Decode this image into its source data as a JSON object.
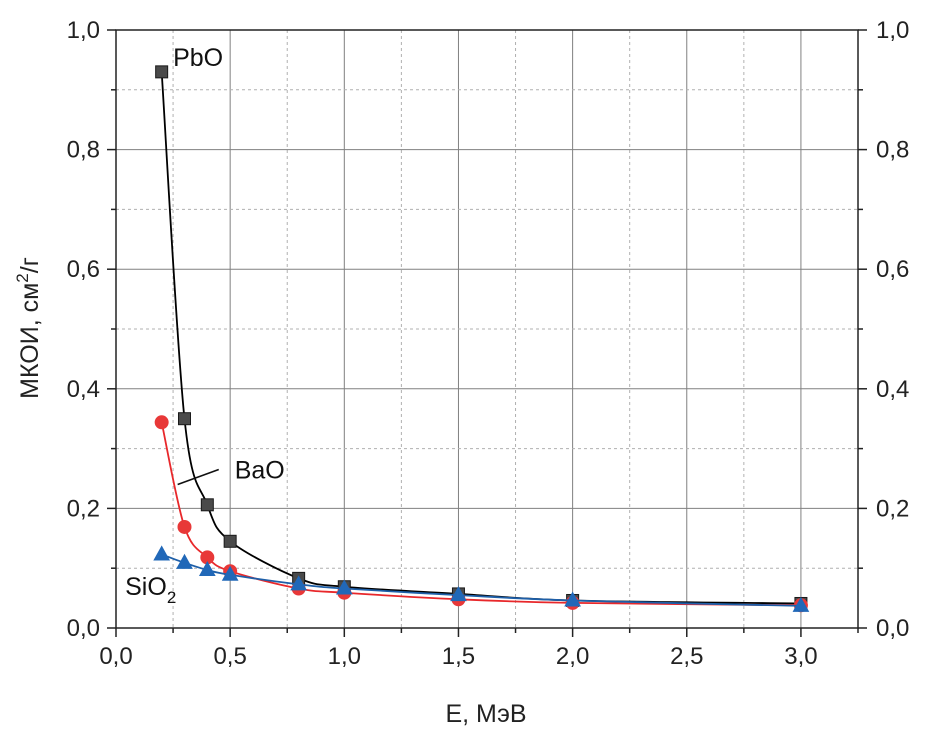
{
  "chart_data": {
    "type": "line",
    "xlabel": "E, МэВ",
    "ylabel_main": "МКОИ, см",
    "ylabel_sup": "2",
    "ylabel_tail": "/г",
    "xlim": [
      0,
      3.25
    ],
    "ylim": [
      0,
      1.0
    ],
    "x_ticks": [
      0,
      0.5,
      1.0,
      1.5,
      2.0,
      2.5,
      3.0
    ],
    "x_tick_labels": [
      "0,0",
      "0,5",
      "1,0",
      "1,5",
      "2,0",
      "2,5",
      "3,0"
    ],
    "y_ticks": [
      0,
      0.2,
      0.4,
      0.6,
      0.8,
      1.0
    ],
    "y_tick_labels": [
      "0,0",
      "0,2",
      "0,4",
      "0,6",
      "0,8",
      "1,0"
    ],
    "grid": true,
    "right_axis_mirror": true,
    "series": [
      {
        "name": "PbO",
        "marker": "square",
        "color": "#000000",
        "marker_color": "#4a4a4a",
        "x": [
          0.2,
          0.3,
          0.4,
          0.5,
          0.8,
          1.0,
          1.5,
          2.0,
          3.0
        ],
        "y": [
          0.93,
          0.35,
          0.206,
          0.145,
          0.083,
          0.069,
          0.057,
          0.046,
          0.041
        ],
        "label": "PbO",
        "label_x": 0.25,
        "label_y": 0.94
      },
      {
        "name": "BaO",
        "marker": "circle",
        "color": "#e8282b",
        "marker_color": "#e83838",
        "x": [
          0.2,
          0.3,
          0.4,
          0.5,
          0.8,
          1.0,
          1.5,
          2.0,
          3.0
        ],
        "y": [
          0.344,
          0.169,
          0.118,
          0.095,
          0.066,
          0.059,
          0.048,
          0.042,
          0.038
        ],
        "label": "BaO",
        "label_x": 0.52,
        "label_y": 0.25
      },
      {
        "name": "SiO2",
        "marker": "triangle",
        "color": "#1e5fa8",
        "marker_color": "#2168b8",
        "x": [
          0.2,
          0.3,
          0.4,
          0.5,
          0.8,
          1.0,
          1.5,
          2.0,
          3.0
        ],
        "y": [
          0.123,
          0.109,
          0.097,
          0.089,
          0.073,
          0.066,
          0.055,
          0.046,
          0.037
        ],
        "label": "SiO",
        "label_sub": "2",
        "label_x": 0.04,
        "label_y": 0.055
      }
    ],
    "annotation_line": {
      "x1": 0.27,
      "y1": 0.24,
      "x2": 0.45,
      "y2": 0.265
    }
  }
}
